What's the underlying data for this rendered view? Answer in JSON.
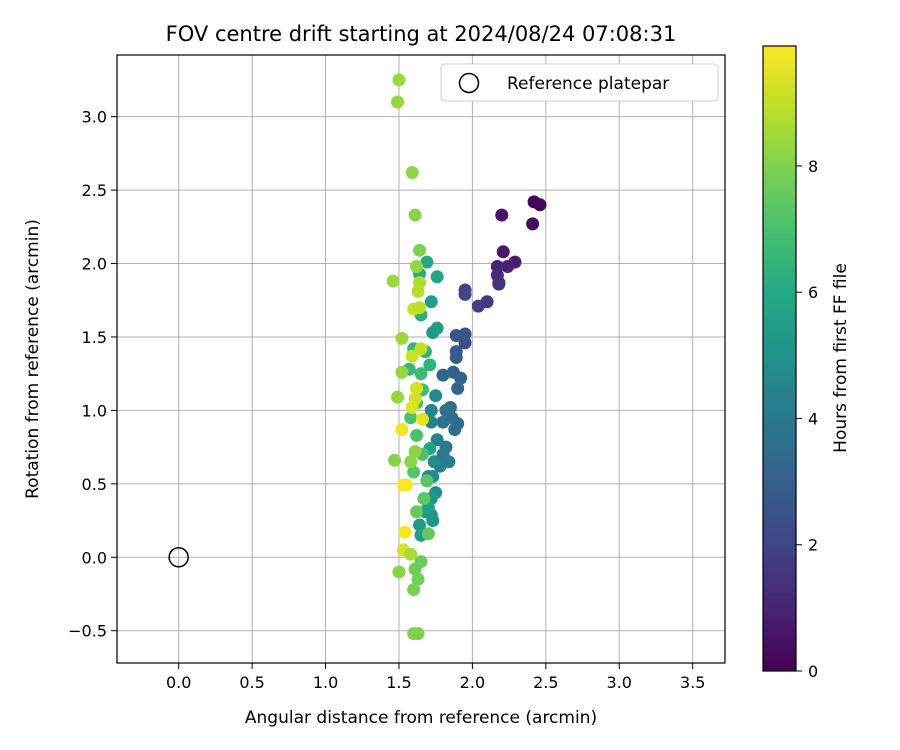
{
  "chart_data": {
    "type": "scatter",
    "title": "FOV centre drift starting at 2024/08/24 07:08:31",
    "xlabel": "Angular distance from reference (arcmin)",
    "ylabel": "Rotation from reference (arcmin)",
    "xlim": [
      -0.42,
      3.72
    ],
    "ylim": [
      -0.72,
      3.42
    ],
    "xticks": [
      0.0,
      0.5,
      1.0,
      1.5,
      2.0,
      2.5,
      3.0,
      3.5
    ],
    "xtick_labels": [
      "0.0",
      "0.5",
      "1.0",
      "1.5",
      "2.0",
      "2.5",
      "3.0",
      "3.5"
    ],
    "yticks": [
      -0.5,
      0.0,
      0.5,
      1.0,
      1.5,
      2.0,
      2.5,
      3.0
    ],
    "ytick_labels": [
      "−0.5",
      "0.0",
      "0.5",
      "1.0",
      "1.5",
      "2.0",
      "2.5",
      "3.0"
    ],
    "grid": true,
    "legend": {
      "placement": "top-right",
      "entries": [
        "Reference platepar"
      ]
    },
    "reference_point": {
      "x": 0.0,
      "y": 0.0
    },
    "colorbar": {
      "label": "Hours from first FF file",
      "colormap": "viridis",
      "min": 0,
      "max": 9.9,
      "ticks": [
        0,
        2,
        4,
        6,
        8
      ],
      "tick_labels": [
        "0",
        "2",
        "4",
        "6",
        "8"
      ]
    },
    "points": [
      {
        "x": 2.42,
        "y": 2.42,
        "c": 0.1
      },
      {
        "x": 2.46,
        "y": 2.4,
        "c": 0.15
      },
      {
        "x": 2.41,
        "y": 2.27,
        "c": 0.3
      },
      {
        "x": 2.2,
        "y": 2.33,
        "c": 0.5
      },
      {
        "x": 2.29,
        "y": 2.01,
        "c": 0.8
      },
      {
        "x": 2.24,
        "y": 1.98,
        "c": 0.9
      },
      {
        "x": 2.21,
        "y": 2.08,
        "c": 0.7
      },
      {
        "x": 2.17,
        "y": 1.98,
        "c": 1.0
      },
      {
        "x": 2.17,
        "y": 1.92,
        "c": 1.2
      },
      {
        "x": 2.18,
        "y": 1.87,
        "c": 1.4
      },
      {
        "x": 2.18,
        "y": 1.86,
        "c": 1.5
      },
      {
        "x": 2.1,
        "y": 1.74,
        "c": 1.7
      },
      {
        "x": 2.04,
        "y": 1.71,
        "c": 1.8
      },
      {
        "x": 1.95,
        "y": 1.82,
        "c": 2.0
      },
      {
        "x": 1.95,
        "y": 1.79,
        "c": 2.1
      },
      {
        "x": 1.95,
        "y": 1.46,
        "c": 2.3
      },
      {
        "x": 1.95,
        "y": 1.52,
        "c": 2.5
      },
      {
        "x": 1.89,
        "y": 1.51,
        "c": 2.6
      },
      {
        "x": 1.89,
        "y": 1.4,
        "c": 2.8
      },
      {
        "x": 1.89,
        "y": 1.36,
        "c": 2.9
      },
      {
        "x": 1.87,
        "y": 1.26,
        "c": 3.0
      },
      {
        "x": 1.92,
        "y": 1.22,
        "c": 3.1
      },
      {
        "x": 1.9,
        "y": 1.15,
        "c": 3.2
      },
      {
        "x": 1.8,
        "y": 1.24,
        "c": 3.3
      },
      {
        "x": 1.85,
        "y": 1.02,
        "c": 3.4
      },
      {
        "x": 1.9,
        "y": 0.91,
        "c": 3.5
      },
      {
        "x": 1.88,
        "y": 0.87,
        "c": 3.5
      },
      {
        "x": 1.86,
        "y": 0.95,
        "c": 3.6
      },
      {
        "x": 1.82,
        "y": 1.0,
        "c": 3.7
      },
      {
        "x": 1.8,
        "y": 0.92,
        "c": 3.8
      },
      {
        "x": 1.82,
        "y": 0.75,
        "c": 3.9
      },
      {
        "x": 1.8,
        "y": 0.7,
        "c": 4.0
      },
      {
        "x": 1.84,
        "y": 0.65,
        "c": 4.1
      },
      {
        "x": 1.78,
        "y": 0.62,
        "c": 4.2
      },
      {
        "x": 1.76,
        "y": 0.8,
        "c": 4.3
      },
      {
        "x": 1.72,
        "y": 0.92,
        "c": 4.4
      },
      {
        "x": 1.72,
        "y": 1.0,
        "c": 4.5
      },
      {
        "x": 1.75,
        "y": 1.1,
        "c": 4.6
      },
      {
        "x": 1.74,
        "y": 0.65,
        "c": 4.6
      },
      {
        "x": 1.73,
        "y": 0.55,
        "c": 4.7
      },
      {
        "x": 1.7,
        "y": 0.55,
        "c": 4.8
      },
      {
        "x": 1.75,
        "y": 0.44,
        "c": 4.9
      },
      {
        "x": 1.72,
        "y": 0.4,
        "c": 5.0
      },
      {
        "x": 1.72,
        "y": 0.29,
        "c": 5.1
      },
      {
        "x": 1.73,
        "y": 0.25,
        "c": 5.2
      },
      {
        "x": 1.68,
        "y": 0.31,
        "c": 5.3
      },
      {
        "x": 1.64,
        "y": 0.22,
        "c": 5.4
      },
      {
        "x": 1.65,
        "y": 0.15,
        "c": 5.5
      },
      {
        "x": 1.7,
        "y": 0.34,
        "c": 5.6
      },
      {
        "x": 1.71,
        "y": 0.74,
        "c": 5.7
      },
      {
        "x": 1.73,
        "y": 1.53,
        "c": 5.2
      },
      {
        "x": 1.76,
        "y": 1.56,
        "c": 5.4
      },
      {
        "x": 1.72,
        "y": 1.74,
        "c": 5.6
      },
      {
        "x": 1.76,
        "y": 1.91,
        "c": 5.8
      },
      {
        "x": 1.69,
        "y": 2.01,
        "c": 6.0
      },
      {
        "x": 1.64,
        "y": 1.93,
        "c": 6.1
      },
      {
        "x": 1.65,
        "y": 1.65,
        "c": 6.2
      },
      {
        "x": 1.68,
        "y": 1.4,
        "c": 6.3
      },
      {
        "x": 1.71,
        "y": 1.31,
        "c": 6.4
      },
      {
        "x": 1.6,
        "y": 1.42,
        "c": 6.5
      },
      {
        "x": 1.57,
        "y": 1.28,
        "c": 6.6
      },
      {
        "x": 1.65,
        "y": 1.25,
        "c": 6.7
      },
      {
        "x": 1.66,
        "y": 1.14,
        "c": 6.8
      },
      {
        "x": 1.62,
        "y": 1.05,
        "c": 6.9
      },
      {
        "x": 1.58,
        "y": 0.95,
        "c": 7.0
      },
      {
        "x": 1.62,
        "y": 0.83,
        "c": 7.1
      },
      {
        "x": 1.66,
        "y": 0.7,
        "c": 7.1
      },
      {
        "x": 1.6,
        "y": 0.58,
        "c": 7.2
      },
      {
        "x": 1.69,
        "y": 0.52,
        "c": 7.3
      },
      {
        "x": 1.67,
        "y": 0.4,
        "c": 7.4
      },
      {
        "x": 1.62,
        "y": 0.31,
        "c": 7.5
      },
      {
        "x": 1.7,
        "y": 0.16,
        "c": 7.5
      },
      {
        "x": 1.65,
        "y": -0.03,
        "c": 7.6
      },
      {
        "x": 1.61,
        "y": -0.08,
        "c": 7.7
      },
      {
        "x": 1.63,
        "y": -0.15,
        "c": 7.8
      },
      {
        "x": 1.6,
        "y": -0.22,
        "c": 7.9
      },
      {
        "x": 1.6,
        "y": -0.52,
        "c": 8.0
      },
      {
        "x": 1.63,
        "y": -0.52,
        "c": 8.0
      },
      {
        "x": 1.5,
        "y": -0.1,
        "c": 8.1
      },
      {
        "x": 1.47,
        "y": 0.66,
        "c": 8.1
      },
      {
        "x": 1.58,
        "y": 0.65,
        "c": 8.2
      },
      {
        "x": 1.61,
        "y": 0.72,
        "c": 8.2
      },
      {
        "x": 1.49,
        "y": 1.09,
        "c": 8.3
      },
      {
        "x": 1.52,
        "y": 1.26,
        "c": 8.3
      },
      {
        "x": 1.52,
        "y": 1.49,
        "c": 8.4
      },
      {
        "x": 1.46,
        "y": 1.88,
        "c": 8.4
      },
      {
        "x": 1.64,
        "y": 2.09,
        "c": 8.0
      },
      {
        "x": 1.62,
        "y": 1.98,
        "c": 8.3
      },
      {
        "x": 1.61,
        "y": 2.33,
        "c": 8.1
      },
      {
        "x": 1.59,
        "y": 2.62,
        "c": 8.2
      },
      {
        "x": 1.49,
        "y": 3.1,
        "c": 8.3
      },
      {
        "x": 1.5,
        "y": 3.25,
        "c": 8.4
      },
      {
        "x": 1.64,
        "y": 1.87,
        "c": 8.7
      },
      {
        "x": 1.63,
        "y": 1.81,
        "c": 8.8
      },
      {
        "x": 1.6,
        "y": 1.69,
        "c": 9.0
      },
      {
        "x": 1.64,
        "y": 1.7,
        "c": 8.9
      },
      {
        "x": 1.59,
        "y": 1.37,
        "c": 9.1
      },
      {
        "x": 1.65,
        "y": 1.42,
        "c": 9.0
      },
      {
        "x": 1.62,
        "y": 1.15,
        "c": 9.3
      },
      {
        "x": 1.61,
        "y": 1.08,
        "c": 9.2
      },
      {
        "x": 1.59,
        "y": 1.02,
        "c": 9.4
      },
      {
        "x": 1.66,
        "y": 0.94,
        "c": 9.5
      },
      {
        "x": 1.52,
        "y": 0.87,
        "c": 9.7
      },
      {
        "x": 1.55,
        "y": 0.49,
        "c": 9.8
      },
      {
        "x": 1.53,
        "y": 0.49,
        "c": 9.9
      },
      {
        "x": 1.54,
        "y": 0.17,
        "c": 9.8
      },
      {
        "x": 1.53,
        "y": 0.05,
        "c": 9.3
      },
      {
        "x": 1.58,
        "y": 0.02,
        "c": 8.6
      }
    ]
  }
}
